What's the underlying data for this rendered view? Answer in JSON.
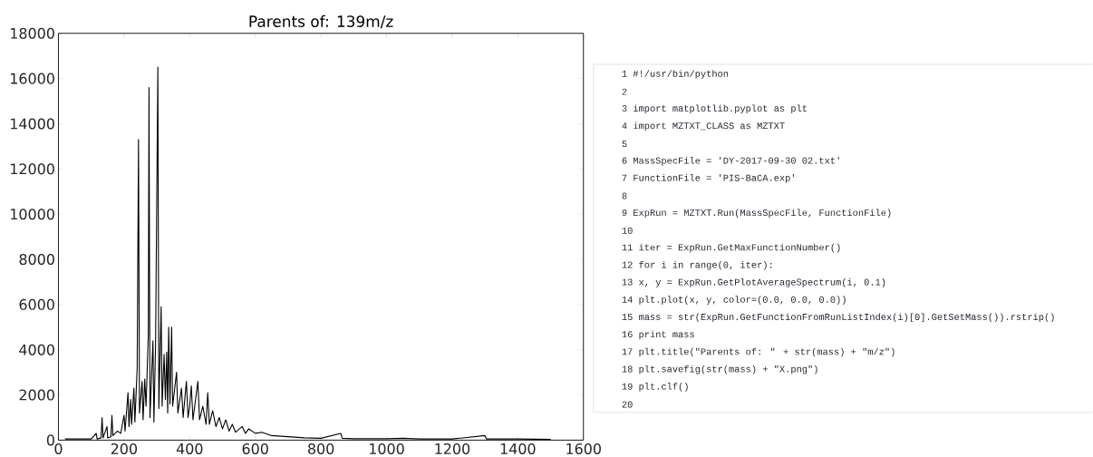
{
  "chart_data": [
    {
      "type": "line",
      "title": "Parents of: 139m/z",
      "color": "#000000",
      "grid": false,
      "xlim": [
        0,
        1600
      ],
      "ylim": [
        0,
        18000
      ],
      "xticks": [
        0,
        200,
        400,
        600,
        800,
        1000,
        1200,
        1400,
        1600
      ],
      "yticks": [
        0,
        2000,
        4000,
        6000,
        8000,
        10000,
        12000,
        14000,
        16000,
        18000
      ],
      "x": [
        20,
        100,
        115,
        118,
        130,
        133,
        136,
        148,
        150,
        160,
        163,
        166,
        180,
        190,
        200,
        203,
        212,
        215,
        220,
        223,
        230,
        233,
        240,
        244,
        247,
        255,
        258,
        263,
        267,
        274,
        276,
        279,
        288,
        291,
        296,
        303,
        306,
        313,
        316,
        322,
        326,
        330,
        333,
        336,
        340,
        345,
        348,
        360,
        364,
        375,
        380,
        390,
        395,
        400,
        405,
        410,
        425,
        430,
        440,
        450,
        455,
        460,
        470,
        480,
        490,
        500,
        510,
        520,
        530,
        540,
        560,
        570,
        580,
        600,
        620,
        650,
        700,
        750,
        800,
        860,
        865,
        900,
        1000,
        1050,
        1100,
        1200,
        1300,
        1305,
        1400,
        1500
      ],
      "values": [
        50,
        50,
        300,
        50,
        100,
        1000,
        100,
        600,
        100,
        150,
        1100,
        200,
        400,
        300,
        1100,
        400,
        2100,
        600,
        1800,
        700,
        2300,
        800,
        3200,
        13300,
        1200,
        2600,
        900,
        2700,
        1500,
        4700,
        15600,
        1000,
        4400,
        800,
        4200,
        16500,
        1400,
        5900,
        1500,
        3800,
        1800,
        3900,
        1200,
        5000,
        1600,
        5000,
        1500,
        3000,
        1200,
        2300,
        1000,
        2600,
        1000,
        1500,
        2400,
        900,
        2600,
        900,
        1500,
        700,
        2100,
        700,
        1300,
        600,
        1000,
        500,
        900,
        400,
        700,
        350,
        600,
        300,
        500,
        300,
        350,
        200,
        150,
        100,
        80,
        300,
        80,
        60,
        60,
        80,
        50,
        50,
        200,
        50,
        50,
        30
      ]
    },
    {
      "type": "other",
      "annotations": [
        "1 #!/usr/bin/python",
        "2",
        "3 import matplotlib.pyplot as plt",
        "4 import MZTXT_CLASS as MZTXT",
        "5",
        "6 MassSpecFile = 'DY-2017-09-30 02.txt'",
        "7 FunctionFile = 'PIS-BaCA.exp'",
        "8",
        "9 ExpRun = MZTXT.Run(MassSpecFile, FunctionFile)",
        "10",
        "11 iter = ExpRun.GetMaxFunctionNumber()",
        "12 for i in range(0, iter):",
        "13 x, y = ExpRun.GetPlotAverageSpectrum(i, 0.1)",
        "14 plt.plot(x, y, color=(0.0, 0.0, 0.0))",
        "15 mass = str(ExpRun.GetFunctionFromRunListIndex(i)[0].GetSetMass()).rstrip()",
        "16 print mass",
        "17 plt.title(\"Parents of: \" + str(mass) + \"m/z\")",
        "18 plt.savefig(str(mass) + \"X.png\")",
        "19 plt.clf()",
        "20"
      ]
    }
  ]
}
